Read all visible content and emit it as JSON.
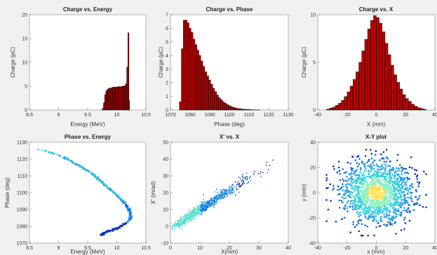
{
  "figure": {
    "background": "#f0f0f0",
    "axes_bg": "#ffffff",
    "bar_color": "#c00000",
    "edge_color": "#000000",
    "scatter_colors": [
      "#0d2fb8",
      "#1a6bd9",
      "#2aa4e8",
      "#35d3e0",
      "#8ef0c0",
      "#ffe35c"
    ]
  },
  "chart_data": [
    {
      "type": "bar",
      "title": "Charge vs. Energy",
      "xlabel": "Energy (MeV)",
      "ylabel": "Charge (pC)",
      "xlim": [
        8.5,
        10.5
      ],
      "ylim": [
        0,
        20
      ],
      "xticks": [
        "8.5",
        "9",
        "9.5",
        "10",
        "10.5"
      ],
      "yticks": [
        "0",
        "5",
        "10",
        "15",
        "20"
      ],
      "x": [
        9.76,
        9.78,
        9.8,
        9.82,
        9.84,
        9.86,
        9.88,
        9.9,
        9.92,
        9.94,
        9.96,
        9.98,
        10.0,
        10.02,
        10.04,
        10.06,
        10.08,
        10.1,
        10.12,
        10.14,
        10.16,
        10.18,
        10.2,
        10.21
      ],
      "values": [
        0.3,
        1.5,
        3.2,
        4.0,
        4.3,
        4.5,
        4.6,
        4.6,
        4.7,
        4.8,
        4.8,
        4.8,
        4.8,
        4.9,
        4.9,
        4.9,
        4.9,
        5.0,
        5.0,
        5.1,
        5.5,
        9.0,
        16.2,
        2.0
      ]
    },
    {
      "type": "bar",
      "title": "Charge vs. Phase",
      "xlabel": "Phase (deg)",
      "ylabel": "Charge (pC)",
      "xlim": [
        1070,
        1130
      ],
      "ylim": [
        0,
        7
      ],
      "xticks": [
        "1070",
        "1080",
        "1090",
        "1100",
        "1110",
        "1120",
        "1130"
      ],
      "yticks": [
        "0",
        "1",
        "2",
        "3",
        "4",
        "5",
        "6",
        "7"
      ],
      "x": [
        1075,
        1076,
        1077,
        1078,
        1079,
        1080,
        1081,
        1082,
        1083,
        1084,
        1085,
        1086,
        1087,
        1088,
        1089,
        1090,
        1091,
        1092,
        1093,
        1094,
        1095,
        1096,
        1097,
        1098,
        1099,
        1100,
        1101,
        1102,
        1103,
        1104,
        1105,
        1106,
        1107,
        1108,
        1109,
        1110,
        1111,
        1112,
        1113,
        1114,
        1115
      ],
      "values": [
        0.6,
        4.5,
        6.6,
        6.6,
        6.4,
        6.0,
        5.7,
        5.2,
        4.8,
        4.4,
        4.0,
        3.6,
        3.2,
        2.8,
        2.5,
        2.2,
        1.9,
        1.6,
        1.35,
        1.1,
        0.9,
        0.75,
        0.6,
        0.5,
        0.4,
        0.32,
        0.26,
        0.2,
        0.16,
        0.12,
        0.1,
        0.08,
        0.06,
        0.05,
        0.04,
        0.03,
        0.02,
        0.02,
        0.01,
        0.01,
        0.01
      ]
    },
    {
      "type": "bar",
      "title": "Charge vs. X",
      "xlabel": "X (mm)",
      "ylabel": "Charge (pC)",
      "xlim": [
        -40,
        40
      ],
      "ylim": [
        0,
        10
      ],
      "xticks": [
        "-40",
        "-20",
        "0",
        "20",
        "40"
      ],
      "yticks": [
        "0",
        "5",
        "10"
      ],
      "x": [
        -33,
        -31,
        -29,
        -27,
        -25,
        -23,
        -21,
        -19,
        -17,
        -15,
        -13,
        -11,
        -9,
        -7,
        -5,
        -3,
        -1,
        1,
        3,
        5,
        7,
        9,
        11,
        13,
        15,
        17,
        19,
        21,
        23,
        25,
        27,
        29,
        31,
        33
      ],
      "values": [
        0.1,
        0.2,
        0.3,
        0.5,
        0.7,
        1.0,
        1.4,
        1.9,
        2.5,
        3.2,
        4.0,
        5.0,
        6.2,
        7.4,
        8.5,
        9.4,
        9.9,
        9.7,
        9.1,
        8.2,
        7.0,
        5.8,
        4.7,
        3.7,
        2.9,
        2.2,
        1.6,
        1.2,
        0.9,
        0.6,
        0.4,
        0.25,
        0.15,
        0.08
      ]
    },
    {
      "type": "scatter",
      "title": "Phase vs. Energy",
      "xlabel": "Energy (MeV)",
      "ylabel": "Phase (deg)",
      "xlim": [
        8.5,
        10.5
      ],
      "ylim": [
        1070,
        1130
      ],
      "xticks": [
        "8.5",
        "9",
        "9.5",
        "10",
        "10.5"
      ],
      "yticks": [
        "1070",
        "1080",
        "1090",
        "1100",
        "1110",
        "1120",
        "1130"
      ],
      "series": [
        {
          "x": [
            8.65,
            8.85,
            9.02,
            9.15,
            9.3,
            9.45,
            9.58,
            9.7,
            9.82,
            9.95,
            10.05,
            10.14,
            10.2,
            10.23,
            10.24,
            10.22,
            10.17,
            10.1,
            10.02,
            9.93,
            9.85,
            9.79,
            9.76,
            9.75
          ],
          "y": [
            1126,
            1124,
            1122,
            1120,
            1117,
            1114,
            1111,
            1107.5,
            1104,
            1100,
            1097,
            1093.5,
            1090.5,
            1088,
            1086,
            1084,
            1082,
            1080.5,
            1079,
            1078,
            1077,
            1076,
            1075.5,
            1075
          ]
        }
      ]
    },
    {
      "type": "scatter",
      "title": "X' vs. X",
      "xlabel": "X(mm)",
      "ylabel": "X' (mrad)",
      "xlim": [
        0,
        40
      ],
      "ylim": [
        -10,
        50
      ],
      "xticks": [
        "0",
        "10",
        "20",
        "30",
        "40"
      ],
      "yticks": [
        "-10",
        "0",
        "10",
        "20",
        "30",
        "40",
        "50"
      ],
      "series": [
        {
          "x": [
            0,
            2,
            4,
            6,
            8,
            10,
            12,
            14,
            16,
            18,
            20,
            22,
            24,
            26,
            28,
            30,
            32,
            34,
            36
          ],
          "y": [
            -1,
            1,
            3,
            5.5,
            8,
            10,
            12,
            14.5,
            17,
            19,
            21,
            23,
            25.5,
            27.5,
            30,
            32,
            34,
            36,
            40
          ]
        }
      ]
    },
    {
      "type": "scatter",
      "title": "X-Y plot",
      "xlabel": "x (mm)",
      "ylabel": "y (mm)",
      "xlim": [
        -40,
        40
      ],
      "ylim": [
        -40,
        40
      ],
      "xticks": [
        "-40",
        "-20",
        "0",
        "20",
        "40"
      ],
      "yticks": [
        "-40",
        "-20",
        "0",
        "20",
        "40"
      ],
      "series": [
        {
          "x": [
            -30,
            30,
            0,
            0
          ],
          "y": [
            -30,
            30,
            0,
            0
          ]
        }
      ]
    }
  ]
}
